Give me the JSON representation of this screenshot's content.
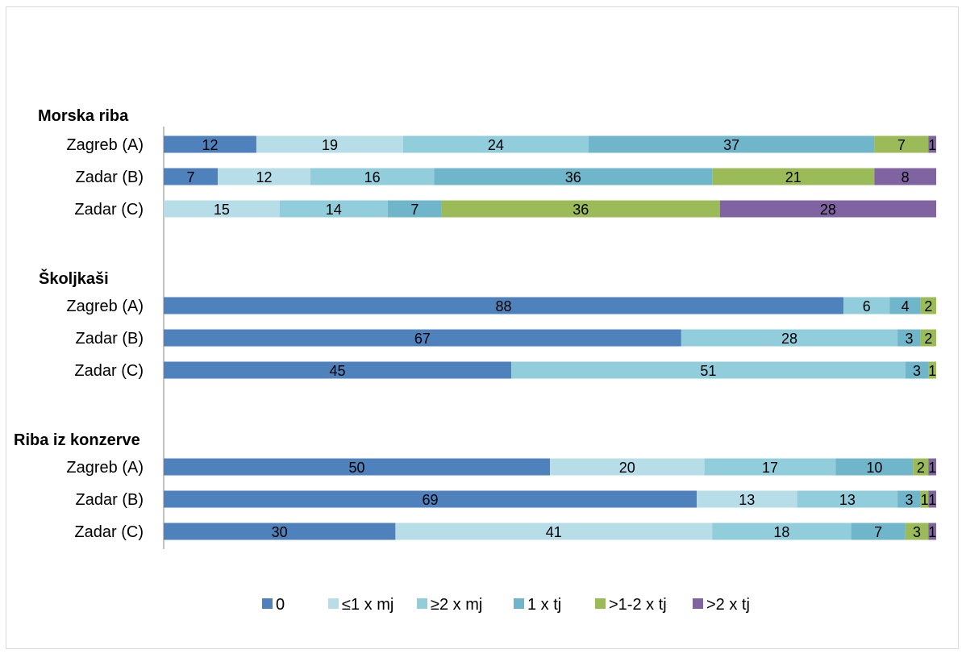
{
  "chart_data": {
    "type": "bar",
    "orientation": "horizontal",
    "stacked": true,
    "grid": false,
    "legend_position": "bottom",
    "xlim": [
      0,
      100
    ],
    "series": [
      {
        "name": "0",
        "color": "#4f81bd"
      },
      {
        "name": "≤1 x mj",
        "color": "#b7dde8"
      },
      {
        "name": "≥2 x mj",
        "color": "#92cddc"
      },
      {
        "name": "1 x tj",
        "color": "#6fb6cb"
      },
      {
        "name": ">1-2 x tj",
        "color": "#9bbb59"
      },
      {
        "name": ">2 x tj",
        "color": "#8064a2"
      }
    ],
    "groups": [
      {
        "label": "Morska riba",
        "rows": [
          {
            "label": "Zagreb (A)",
            "values": [
              12,
              19,
              24,
              37,
              7,
              1
            ]
          },
          {
            "label": "Zadar (B)",
            "values": [
              7,
              12,
              16,
              36,
              21,
              8
            ]
          },
          {
            "label": "Zadar (C)",
            "values": [
              0,
              15,
              14,
              7,
              36,
              28
            ]
          }
        ]
      },
      {
        "label": "Školjkaši",
        "rows": [
          {
            "label": "Zagreb (A)",
            "values": [
              88,
              0,
              6,
              4,
              2,
              0
            ]
          },
          {
            "label": "Zadar (B)",
            "values": [
              67,
              0,
              28,
              3,
              2,
              0
            ]
          },
          {
            "label": "Zadar (C)",
            "values": [
              45,
              0,
              51,
              3,
              1,
              0
            ]
          }
        ]
      },
      {
        "label": "Riba iz konzerve",
        "rows": [
          {
            "label": "Zagreb (A)",
            "values": [
              50,
              20,
              17,
              10,
              2,
              1
            ]
          },
          {
            "label": "Zadar (B)",
            "values": [
              69,
              13,
              13,
              3,
              1,
              1
            ]
          },
          {
            "label": "Zadar (C)",
            "values": [
              30,
              41,
              18,
              7,
              3,
              1
            ]
          }
        ]
      }
    ]
  }
}
